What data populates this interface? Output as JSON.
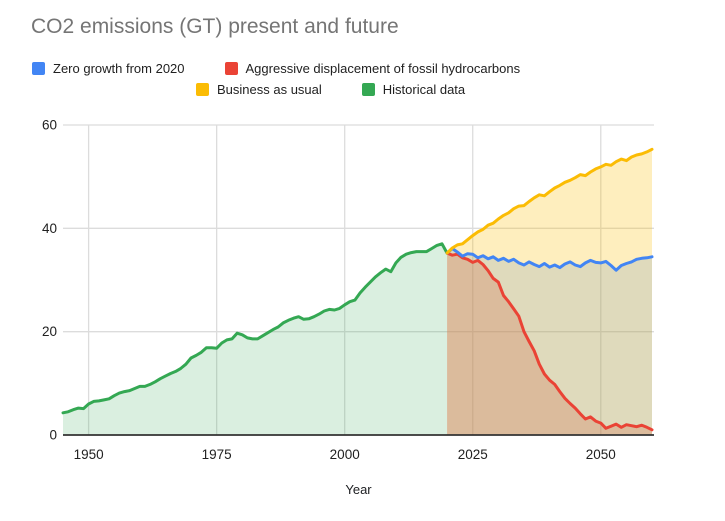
{
  "title": "CO2 emissions (GT) present and future",
  "legend": {
    "rows": [
      [
        {
          "label": "Zero growth from 2020",
          "color": "#4285F4"
        },
        {
          "label": "Aggressive displacement of fossil hydrocarbons",
          "color": "#EA4335"
        }
      ],
      [
        {
          "label": "Business as usual",
          "color": "#FBBC04"
        },
        {
          "label": "Historical data",
          "color": "#34A853"
        }
      ]
    ]
  },
  "colors": {
    "background": "#FFFFFF",
    "grid": "#DCDCDC",
    "axis_line": "#333333",
    "tick_label": "#212121",
    "title_text": "#757575"
  },
  "chart_data": {
    "type": "area",
    "title": "CO2 emissions (GT) present and future",
    "xlabel": "Year",
    "ylabel": "",
    "xlim": [
      1945,
      2060
    ],
    "ylim": [
      0,
      60
    ],
    "x_ticks": [
      1950,
      1975,
      2000,
      2025,
      2050
    ],
    "y_ticks": [
      0,
      20,
      40,
      60
    ],
    "grid": true,
    "legend_position": "top",
    "series": [
      {
        "name": "Historical data",
        "color": "#34A853",
        "fill_opacity": 0.18,
        "line_width": 3,
        "x_start": 1945,
        "x_step": 1,
        "values": [
          4.3,
          4.5,
          4.9,
          5.2,
          5.1,
          6.0,
          6.5,
          6.6,
          6.8,
          7.0,
          7.6,
          8.1,
          8.4,
          8.6,
          9.0,
          9.4,
          9.4,
          9.8,
          10.3,
          10.9,
          11.4,
          11.9,
          12.3,
          12.9,
          13.7,
          14.9,
          15.4,
          16.0,
          16.9,
          16.9,
          16.8,
          17.8,
          18.4,
          18.6,
          19.7,
          19.4,
          18.8,
          18.6,
          18.6,
          19.2,
          19.8,
          20.4,
          20.9,
          21.7,
          22.2,
          22.6,
          22.9,
          22.4,
          22.5,
          22.9,
          23.4,
          24.0,
          24.3,
          24.2,
          24.5,
          25.2,
          25.8,
          26.1,
          27.5,
          28.6,
          29.6,
          30.6,
          31.4,
          32.1,
          31.6,
          33.3,
          34.4,
          35.0,
          35.3,
          35.5,
          35.5,
          35.5,
          36.1,
          36.7,
          37.0,
          35.2
        ]
      },
      {
        "name": "Aggressive displacement of fossil hydrocarbons",
        "color": "#EA4335",
        "fill_opacity": 0.28,
        "line_width": 3,
        "x_start": 2020,
        "x_step": 1,
        "values": [
          35.2,
          34.8,
          35.0,
          34.3,
          34.0,
          33.4,
          33.8,
          33.0,
          31.8,
          30.3,
          29.6,
          27.0,
          25.8,
          24.4,
          23.0,
          20.0,
          18.1,
          16.3,
          13.7,
          11.8,
          10.6,
          9.8,
          8.4,
          7.1,
          6.1,
          5.2,
          4.1,
          3.1,
          3.5,
          2.7,
          2.3,
          1.3,
          1.7,
          2.1,
          1.5,
          2.0,
          1.8,
          1.6,
          1.9,
          1.5,
          1.0
        ]
      },
      {
        "name": "Zero growth from 2020",
        "color": "#4285F4",
        "fill_opacity": 0.22,
        "line_width": 3,
        "x_start": 2020,
        "x_step": 1,
        "values": [
          35.2,
          36.1,
          35.4,
          34.6,
          35.1,
          35.0,
          34.3,
          34.7,
          34.1,
          34.5,
          33.8,
          34.2,
          33.6,
          34.0,
          33.3,
          32.9,
          33.5,
          33.0,
          32.6,
          33.2,
          32.5,
          32.9,
          32.4,
          33.1,
          33.5,
          32.9,
          32.6,
          33.3,
          33.8,
          33.4,
          33.3,
          33.6,
          32.8,
          31.9,
          32.8,
          33.2,
          33.5,
          34.0,
          34.2,
          34.3,
          34.5
        ]
      },
      {
        "name": "Business as usual",
        "color": "#FBBC04",
        "fill_opacity": 0.26,
        "line_width": 3,
        "x_start": 2020,
        "x_step": 1,
        "values": [
          35.2,
          36.2,
          36.8,
          37.0,
          37.8,
          38.6,
          39.3,
          39.8,
          40.6,
          41.0,
          41.8,
          42.5,
          43.0,
          43.8,
          44.3,
          44.4,
          45.2,
          45.9,
          46.5,
          46.3,
          47.1,
          47.8,
          48.3,
          48.9,
          49.3,
          49.8,
          50.4,
          50.2,
          50.9,
          51.5,
          51.9,
          52.4,
          52.2,
          52.9,
          53.4,
          53.1,
          53.8,
          54.2,
          54.4,
          54.8,
          55.3
        ]
      }
    ]
  }
}
